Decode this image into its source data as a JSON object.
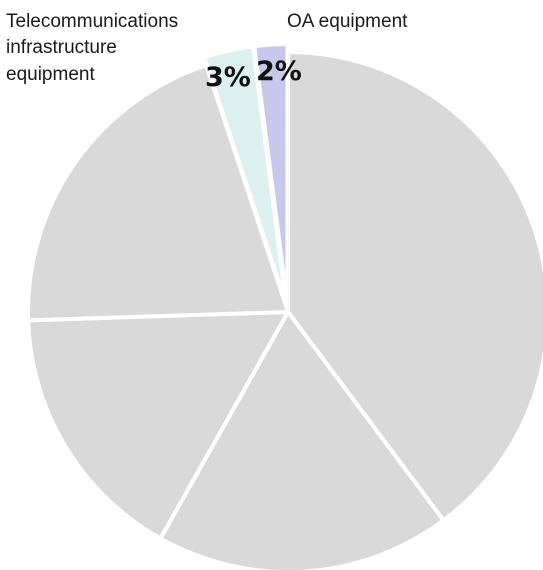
{
  "chart_data": {
    "type": "pie",
    "title": "",
    "slices": [
      {
        "label": "",
        "value": 39,
        "value_label": "",
        "color": "#d9d9d9"
      },
      {
        "label": "",
        "value": 18,
        "value_label": "",
        "color": "#d9d9d9"
      },
      {
        "label": "",
        "value": 16,
        "value_label": "",
        "color": "#d9d9d9"
      },
      {
        "label": "",
        "value": 20,
        "value_label": "",
        "color": "#d9d9d9"
      },
      {
        "label": "Telecommunications infrastructure equipment",
        "value": 3,
        "value_label": "3%",
        "color": "#dcf0f0",
        "exploded": true
      },
      {
        "label": "OA equipment",
        "value": 2,
        "value_label": "2%",
        "color": "#c8c8ec",
        "exploded": true
      }
    ],
    "labels": {
      "telecom_lines": [
        "Telecommunications",
        "infrastructure",
        "equipment"
      ],
      "oa": "OA equipment"
    }
  }
}
